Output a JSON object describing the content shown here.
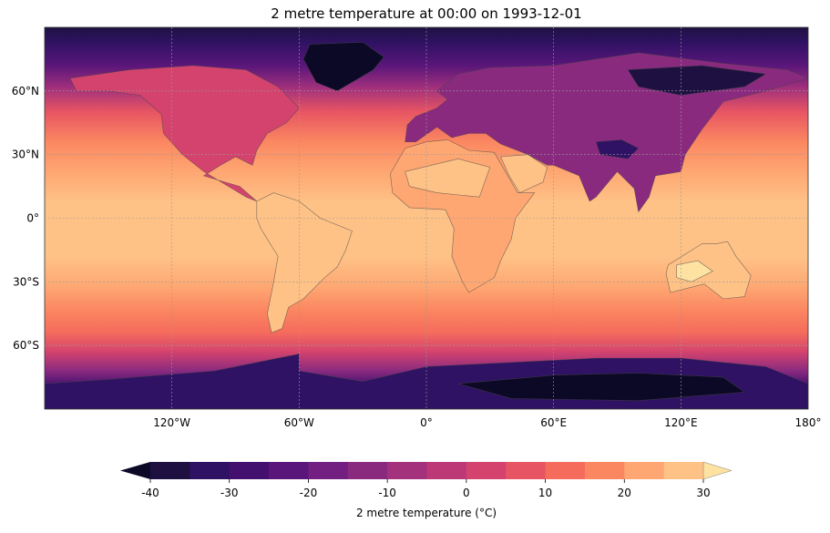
{
  "title": "2 metre temperature at 00:00 on 1993-12-01",
  "map": {
    "projection": "PlateCarree",
    "lon_ticks": [
      "120°W",
      "60°W",
      "0°",
      "60°E",
      "120°E",
      "180°"
    ],
    "lat_ticks": [
      "60°N",
      "30°N",
      "0°",
      "30°S",
      "60°S"
    ],
    "gridlines": true
  },
  "colorbar": {
    "label": "2 metre temperature (°C)",
    "tick_labels": [
      "-40",
      "-30",
      "-20",
      "-10",
      "0",
      "10",
      "20",
      "30"
    ],
    "levels": [
      -40,
      -35,
      -30,
      -25,
      -20,
      -15,
      -10,
      -5,
      0,
      5,
      10,
      15,
      20,
      25,
      30
    ],
    "colors": [
      "#0c0926",
      "#1e1142",
      "#2f1263",
      "#43106f",
      "#5a167a",
      "#721f81",
      "#8a2a7f",
      "#a3317c",
      "#bc3877",
      "#d3436e",
      "#e75463",
      "#f56b5c",
      "#fb8761",
      "#fea772",
      "#fec287",
      "#fde2a2"
    ],
    "extend": "both"
  },
  "chart_data": {
    "type": "heatmap",
    "variable": "2 metre temperature",
    "units": "°C",
    "colorbar_range": [
      -40,
      30
    ]
  }
}
